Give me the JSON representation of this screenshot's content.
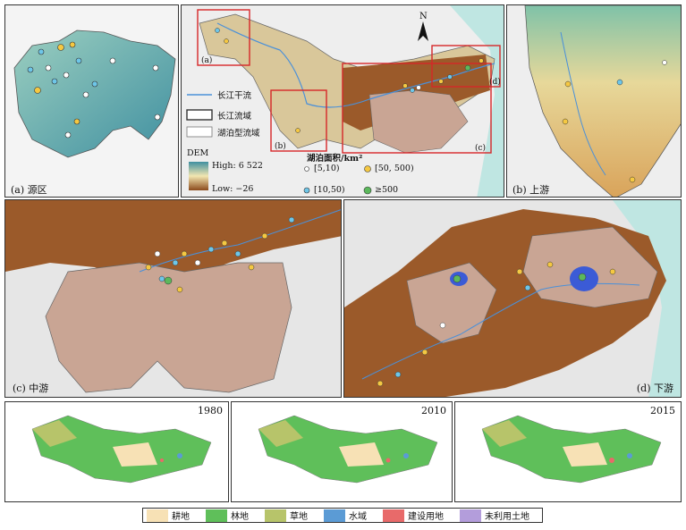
{
  "panels": {
    "a": {
      "label": "(a) 源区"
    },
    "b": {
      "label": "(b) 上游"
    },
    "c": {
      "label": "(c) 中游"
    },
    "d": {
      "label": "(d) 下游"
    }
  },
  "overview": {
    "inset_labels": [
      "(a)",
      "(b)",
      "(c)",
      "(d)"
    ],
    "north": "N",
    "legend": {
      "mainstream": "长江干流",
      "basin": "长江流域",
      "lake_basin": "湖泊型流域",
      "dem_title": "DEM",
      "dem_high": "High: 6 522",
      "dem_low": "Low: −26"
    },
    "lake_legend": {
      "title": "湖泊面积/km²",
      "classes": [
        "[5,10)",
        "[10,50)",
        "[50, 500)",
        "≥500"
      ],
      "colors": [
        "#ffffff",
        "#6ec6e8",
        "#f5c842",
        "#5cb85c"
      ]
    }
  },
  "land_use": {
    "years": [
      "1980",
      "2010",
      "2015"
    ],
    "legend": [
      {
        "label": "耕地",
        "color": "#f7e1b5"
      },
      {
        "label": "林地",
        "color": "#5fbf5a"
      },
      {
        "label": "草地",
        "color": "#b7c46a"
      },
      {
        "label": "水域",
        "color": "#5b9bd5"
      },
      {
        "label": "建设用地",
        "color": "#e86a6a"
      },
      {
        "label": "未利用土地",
        "color": "#b39ddb"
      }
    ]
  }
}
